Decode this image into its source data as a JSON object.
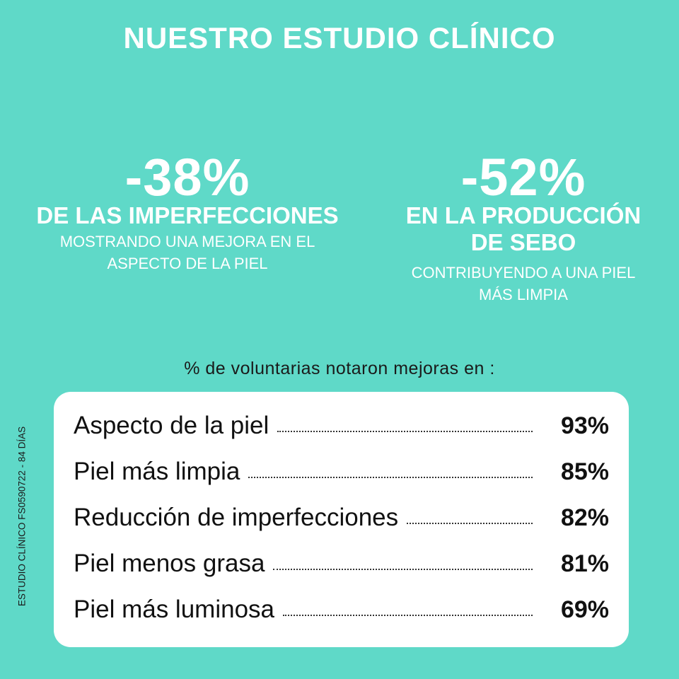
{
  "title": "NUESTRO ESTUDIO CLÍNICO",
  "stats": [
    {
      "value": "-38%",
      "headline_lines": [
        "DE LAS IMPERFECCIONES"
      ],
      "sub_lines": [
        "MOSTRANDO UNA MEJORA EN EL",
        "ASPECTO DE LA PIEL"
      ]
    },
    {
      "value": "-52%",
      "headline_lines": [
        "EN LA PRODUCCIÓN",
        "DE SEBO"
      ],
      "sub_lines": [
        "CONTRIBUYENDO A UNA PIEL",
        "MÁS LIMPIA"
      ]
    }
  ],
  "intro": "% de voluntarias notaron mejoras en :",
  "side_note": "ESTUDIO CLÍNICO FS0590722 - 84 DÍAS",
  "results": [
    {
      "label": "Aspecto de la piel",
      "percent": "93%"
    },
    {
      "label": "Piel más limpia",
      "percent": "85%"
    },
    {
      "label": "Reducción de imperfecciones",
      "percent": "82%"
    },
    {
      "label": "Piel menos grasa",
      "percent": "81%"
    },
    {
      "label": "Piel más luminosa",
      "percent": "69%"
    }
  ],
  "colors": {
    "background": "#5fd9c8",
    "card": "#ffffff",
    "text_light": "#ffffff",
    "text_dark": "#111111"
  }
}
